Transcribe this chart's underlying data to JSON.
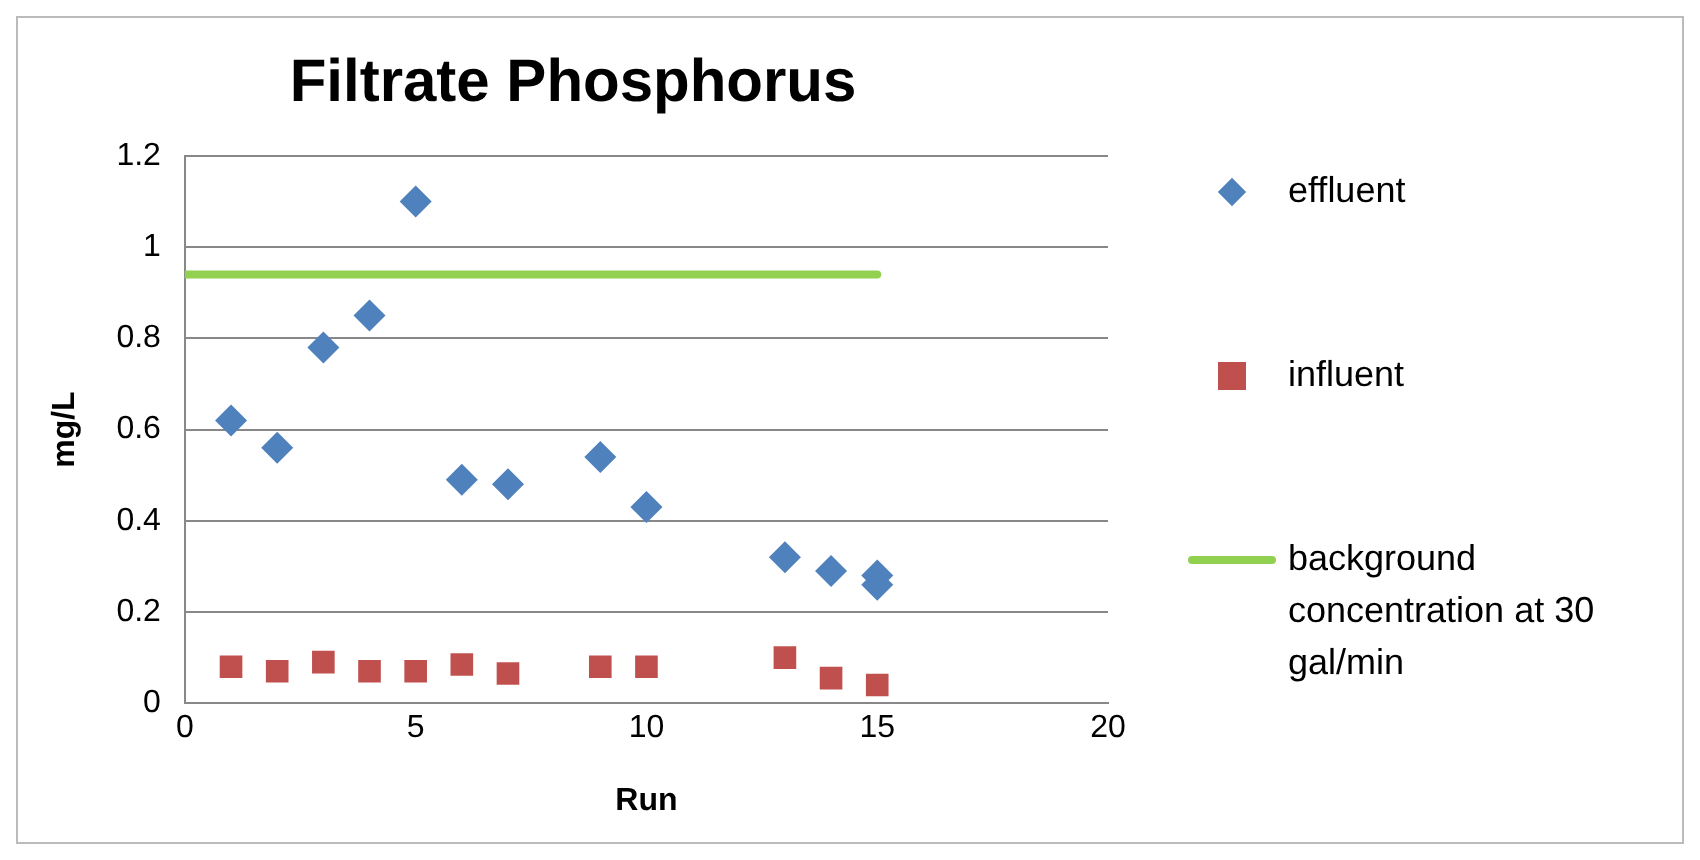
{
  "chart_data": {
    "type": "scatter",
    "title": "Filtrate Phosphorus",
    "xlabel": "Run",
    "ylabel": "mg/L",
    "xlim": [
      0,
      20
    ],
    "xticks": [
      0,
      5,
      10,
      15,
      20
    ],
    "ylim": [
      0,
      1.2
    ],
    "yticks": [
      0,
      0.2,
      0.4,
      0.6,
      0.8,
      1,
      1.2
    ],
    "grid": "y",
    "legend": "right",
    "series": [
      {
        "name": "effluent",
        "marker": "diamond",
        "color": "#4f81bd",
        "x": [
          1,
          2,
          3,
          4,
          5,
          6,
          7,
          9,
          10,
          13,
          14,
          15,
          15
        ],
        "values": [
          0.62,
          0.56,
          0.78,
          0.85,
          1.1,
          0.49,
          0.48,
          0.54,
          0.43,
          0.32,
          0.29,
          0.28,
          0.26
        ]
      },
      {
        "name": "influent",
        "marker": "square",
        "color": "#c0504d",
        "x": [
          1,
          2,
          3,
          4,
          5,
          6,
          7,
          9,
          10,
          13,
          14,
          15
        ],
        "values": [
          0.08,
          0.07,
          0.09,
          0.07,
          0.07,
          0.085,
          0.065,
          0.08,
          0.08,
          0.1,
          0.055,
          0.04
        ]
      },
      {
        "name": "background concentration at 30 gal/min",
        "type": "line",
        "marker": "none",
        "color": "#92d050",
        "x": [
          0,
          15
        ],
        "values": [
          0.94,
          0.94
        ]
      }
    ]
  }
}
